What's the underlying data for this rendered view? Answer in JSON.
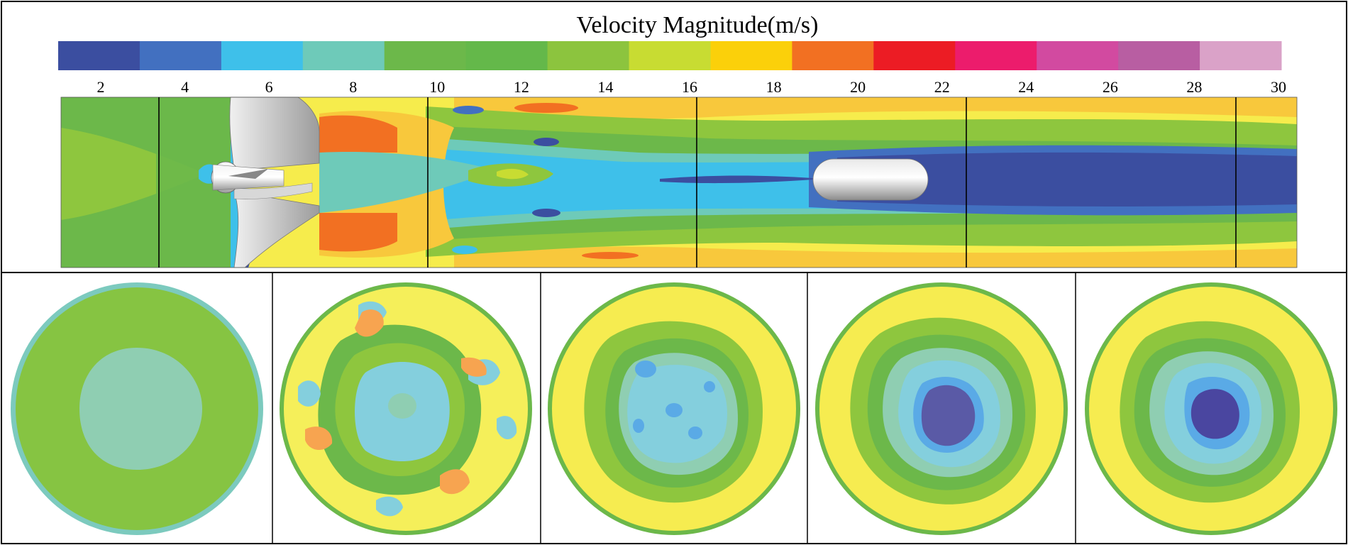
{
  "legend": {
    "title": "Velocity Magnitude(m/s)",
    "tick_labels": [
      "2",
      "4",
      "6",
      "8",
      "10",
      "12",
      "14",
      "16",
      "18",
      "20",
      "22",
      "24",
      "26",
      "28",
      "30"
    ],
    "colors": [
      "#3b4ea0",
      "#4270c0",
      "#3ec0ea",
      "#6ecab9",
      "#6cb84a",
      "#64b84a",
      "#8cc43e",
      "#c8dc32",
      "#fbd00a",
      "#f27022",
      "#ec1c24",
      "#ec1c6c",
      "#d24aa0",
      "#b85ea2",
      "#daa2c8"
    ]
  },
  "colors": {
    "frame": "#000000",
    "divider": "#000000",
    "body_gray": "#d6d6d6",
    "blade_gray": "#c4c4c4"
  },
  "cross_sections": [
    {
      "icon": "section-plane-1-contour",
      "rim": "#7ccabe",
      "base": "#86c442",
      "core": "#8fceb2"
    },
    {
      "icon": "section-plane-2-contour",
      "rim": "#6cb84a",
      "base": "#f5ef5a",
      "core": "#84cfdd"
    },
    {
      "icon": "section-plane-3-contour",
      "rim": "#6cb84a",
      "base": "#f6ec50",
      "core": "#84cfdd"
    },
    {
      "icon": "section-plane-4-contour",
      "rim": "#6cb84a",
      "base": "#f6ec50",
      "core": "#5a5aa6"
    },
    {
      "icon": "section-plane-5-contour",
      "rim": "#6cb84a",
      "base": "#f6ec50",
      "core": "#4a46a0"
    }
  ]
}
